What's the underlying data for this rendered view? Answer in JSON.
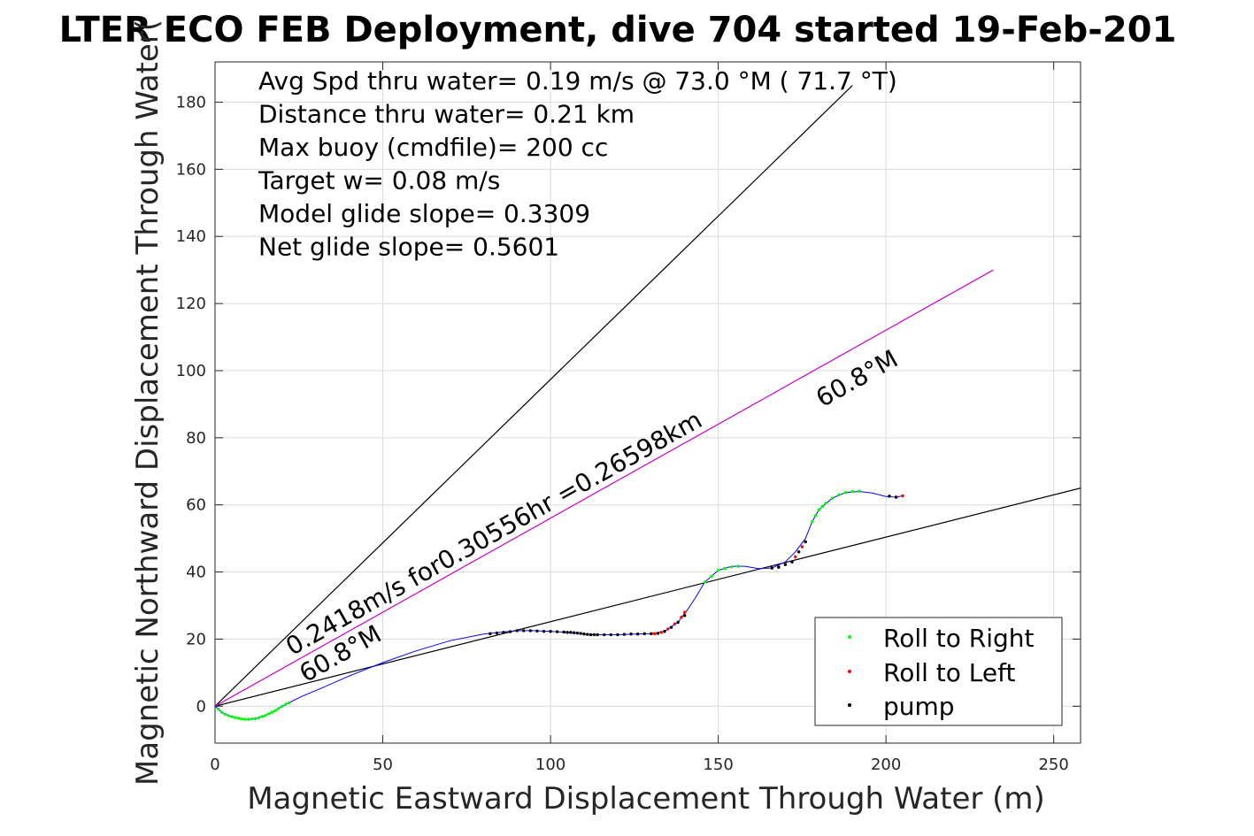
{
  "chart_data": {
    "type": "line",
    "title": "LTER ECO FEB Deployment, dive 704 started 19-Feb-201",
    "xlabel": "Magnetic Eastward Displacement Through Water (m)",
    "ylabel": "Magnetic Northward Displacement Through Water(",
    "xlim": [
      0,
      258
    ],
    "ylim": [
      -11,
      192
    ],
    "xticks": [
      0,
      50,
      100,
      150,
      200,
      250
    ],
    "yticks": [
      0,
      20,
      40,
      60,
      80,
      100,
      120,
      140,
      160,
      180
    ],
    "xtick_labels": [
      "0",
      "50",
      "100",
      "150",
      "200",
      "250"
    ],
    "ytick_labels": [
      "0",
      "20",
      "40",
      "60",
      "80",
      "100",
      "120",
      "140",
      "160",
      "180"
    ],
    "grid": true,
    "info_lines": [
      "Avg Spd thru water=  0.19 m/s @  73.0 °M ( 71.7 °T)",
      "Distance thru water=  0.21 km",
      "Max buoy (cmdfile)= 200 cc",
      "Target w= 0.08 m/s",
      "Model glide slope= 0.3309",
      "Net glide slope= 0.5601"
    ],
    "reference_lines": [
      {
        "color": "#000000",
        "x": [
          0,
          190
        ],
        "y": [
          0,
          185
        ]
      },
      {
        "color": "#000000",
        "x": [
          0,
          258
        ],
        "y": [
          0,
          65
        ]
      },
      {
        "color": "#cc00cc",
        "x": [
          0,
          232
        ],
        "y": [
          0,
          130
        ]
      }
    ],
    "annotations": [
      {
        "text": "0.2418m/s for0.30556hr =0.26598km",
        "x": 23,
        "y": 15,
        "angle": -29.3
      },
      {
        "text": "60.8°M",
        "x": 27,
        "y": 7,
        "angle": -29.3
      },
      {
        "text": "60.8°M",
        "x": 181,
        "y": 89,
        "angle": -29.3
      }
    ],
    "track": {
      "color": "#0000ff",
      "x": [
        0,
        2,
        4,
        6,
        8,
        10,
        12,
        14,
        16,
        18,
        20,
        22,
        26,
        32,
        40,
        50,
        60,
        70,
        80,
        85,
        90,
        95,
        100,
        105,
        110,
        115,
        120,
        125,
        130,
        134,
        138,
        141,
        143,
        146,
        150,
        154,
        158,
        162,
        166,
        170,
        173,
        176,
        178,
        180,
        184,
        188,
        192,
        196,
        200,
        203,
        205
      ],
      "y": [
        0,
        -1.8,
        -2.8,
        -3.4,
        -3.8,
        -3.9,
        -3.7,
        -3.1,
        -2.3,
        -1.3,
        0,
        1,
        3,
        5.5,
        9,
        13,
        16.5,
        19.5,
        21.5,
        22,
        22.5,
        22.5,
        22.3,
        22,
        21.5,
        21.3,
        21.3,
        21.5,
        21.6,
        22.3,
        25,
        29,
        32,
        37,
        40.5,
        41.7,
        41.7,
        41,
        41.2,
        43,
        46,
        50,
        55,
        58.5,
        62,
        63.7,
        64,
        63.5,
        62.5,
        62.3,
        62.7
      ]
    },
    "series": [
      {
        "name": "Roll to Right",
        "color": "#00ff00",
        "x": [
          1,
          2,
          3,
          4,
          5,
          6,
          7,
          8,
          9,
          10,
          11,
          12,
          13,
          14,
          15,
          16,
          17,
          18,
          19,
          20,
          21,
          22,
          146,
          148,
          150,
          152,
          154,
          156,
          178,
          179,
          180,
          181,
          182,
          184,
          186,
          188,
          190,
          192
        ],
        "y": [
          -0.9,
          -1.8,
          -2.4,
          -2.8,
          -3.1,
          -3.4,
          -3.6,
          -3.8,
          -3.9,
          -3.9,
          -3.8,
          -3.7,
          -3.5,
          -3.1,
          -2.8,
          -2.3,
          -1.8,
          -1.3,
          -0.7,
          0,
          0.5,
          1,
          37,
          38.7,
          40.5,
          41,
          41.5,
          41.7,
          55,
          56.8,
          58.5,
          59.5,
          60.5,
          62,
          63,
          63.7,
          64,
          64.1
        ]
      },
      {
        "name": "Roll to Left",
        "color": "#ff0000",
        "x": [
          131,
          133,
          135,
          137,
          139,
          140,
          166,
          168,
          170,
          172,
          173,
          174,
          175,
          176,
          201,
          203,
          205
        ],
        "y": [
          21.6,
          22,
          23,
          24.5,
          26.5,
          28,
          41.2,
          41.5,
          42.3,
          43,
          44.5,
          46,
          47.5,
          49,
          62.6,
          62.3,
          62.7
        ]
      },
      {
        "name": "pump",
        "color": "#000000",
        "x": [
          82,
          84,
          86,
          88,
          90,
          92,
          94,
          96,
          98,
          100,
          102,
          104,
          105,
          106,
          107,
          108,
          109,
          110,
          111,
          112,
          113,
          114,
          116,
          118,
          120,
          122,
          124,
          126,
          128,
          130,
          132,
          134,
          136,
          138,
          140,
          166,
          168,
          170,
          172,
          174,
          176,
          201,
          203
        ],
        "y": [
          21.6,
          21.8,
          22,
          22.2,
          22.5,
          22.5,
          22.5,
          22.4,
          22.3,
          22.3,
          22.2,
          22.1,
          22,
          22,
          21.9,
          21.8,
          21.7,
          21.5,
          21.4,
          21.3,
          21.3,
          21.3,
          21.3,
          21.3,
          21.3,
          21.4,
          21.5,
          21.5,
          21.6,
          21.6,
          21.7,
          22.3,
          23.5,
          25,
          27,
          41.2,
          41.4,
          42.2,
          43,
          46,
          49,
          62.6,
          62.3
        ]
      }
    ],
    "legend": {
      "placement": "bottom-right",
      "entries": [
        "Roll to Right",
        "Roll to Left",
        "pump"
      ]
    }
  }
}
